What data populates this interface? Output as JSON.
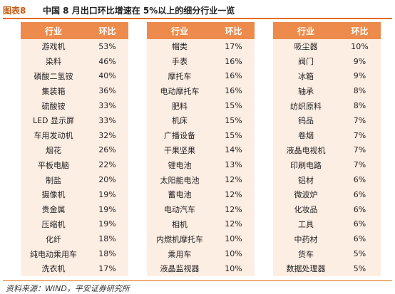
{
  "figure": {
    "label": "图表8",
    "title": "中国 8 月出口环比增速在 5%以上的细分行业一览"
  },
  "table": {
    "headers": {
      "industry": "行业",
      "mom": "环比"
    },
    "groups": [
      [
        {
          "name": "游戏机",
          "value": "53%"
        },
        {
          "name": "染料",
          "value": "46%"
        },
        {
          "name": "磷酸二氢铵",
          "value": "40%"
        },
        {
          "name": "集装箱",
          "value": "36%"
        },
        {
          "name": "硫酸铵",
          "value": "33%"
        },
        {
          "name": "LED 显示屏",
          "value": "33%"
        },
        {
          "name": "车用发动机",
          "value": "32%"
        },
        {
          "name": "烟花",
          "value": "26%"
        },
        {
          "name": "平板电脑",
          "value": "22%"
        },
        {
          "name": "制盐",
          "value": "20%"
        },
        {
          "name": "摄像机",
          "value": "19%"
        },
        {
          "name": "贵金属",
          "value": "19%"
        },
        {
          "name": "压缩机",
          "value": "19%"
        },
        {
          "name": "化纤",
          "value": "18%"
        },
        {
          "name": "纯电动乘用车",
          "value": "18%"
        },
        {
          "name": "洗衣机",
          "value": "17%"
        }
      ],
      [
        {
          "name": "帽类",
          "value": "17%"
        },
        {
          "name": "手表",
          "value": "16%"
        },
        {
          "name": "摩托车",
          "value": "16%"
        },
        {
          "name": "电动摩托车",
          "value": "16%"
        },
        {
          "name": "肥料",
          "value": "15%"
        },
        {
          "name": "机床",
          "value": "15%"
        },
        {
          "name": "广播设备",
          "value": "15%"
        },
        {
          "name": "干果坚果",
          "value": "14%"
        },
        {
          "name": "锂电池",
          "value": "13%"
        },
        {
          "name": "太阳能电池",
          "value": "12%"
        },
        {
          "name": "蓄电池",
          "value": "12%"
        },
        {
          "name": "电动汽车",
          "value": "12%"
        },
        {
          "name": "相机",
          "value": "12%"
        },
        {
          "name": "内燃机摩托车",
          "value": "10%"
        },
        {
          "name": "乘用车",
          "value": "10%"
        },
        {
          "name": "液晶监视器",
          "value": "10%"
        }
      ],
      [
        {
          "name": "吸尘器",
          "value": "10%"
        },
        {
          "name": "阀门",
          "value": "9%"
        },
        {
          "name": "冰箱",
          "value": "9%"
        },
        {
          "name": "轴承",
          "value": "8%"
        },
        {
          "name": "纺织原料",
          "value": "8%"
        },
        {
          "name": "钨品",
          "value": "7%"
        },
        {
          "name": "卷烟",
          "value": "7%"
        },
        {
          "name": "液晶电视机",
          "value": "7%"
        },
        {
          "name": "印刷电路",
          "value": "7%"
        },
        {
          "name": "铝材",
          "value": "6%"
        },
        {
          "name": "微波炉",
          "value": "6%"
        },
        {
          "name": "化妆品",
          "value": "6%"
        },
        {
          "name": "工具",
          "value": "6%"
        },
        {
          "name": "中药材",
          "value": "6%"
        },
        {
          "name": "货车",
          "value": "5%"
        },
        {
          "name": "数据处理器",
          "value": "5%"
        }
      ]
    ]
  },
  "source": "资料来源：WIND，平安证券研究所"
}
